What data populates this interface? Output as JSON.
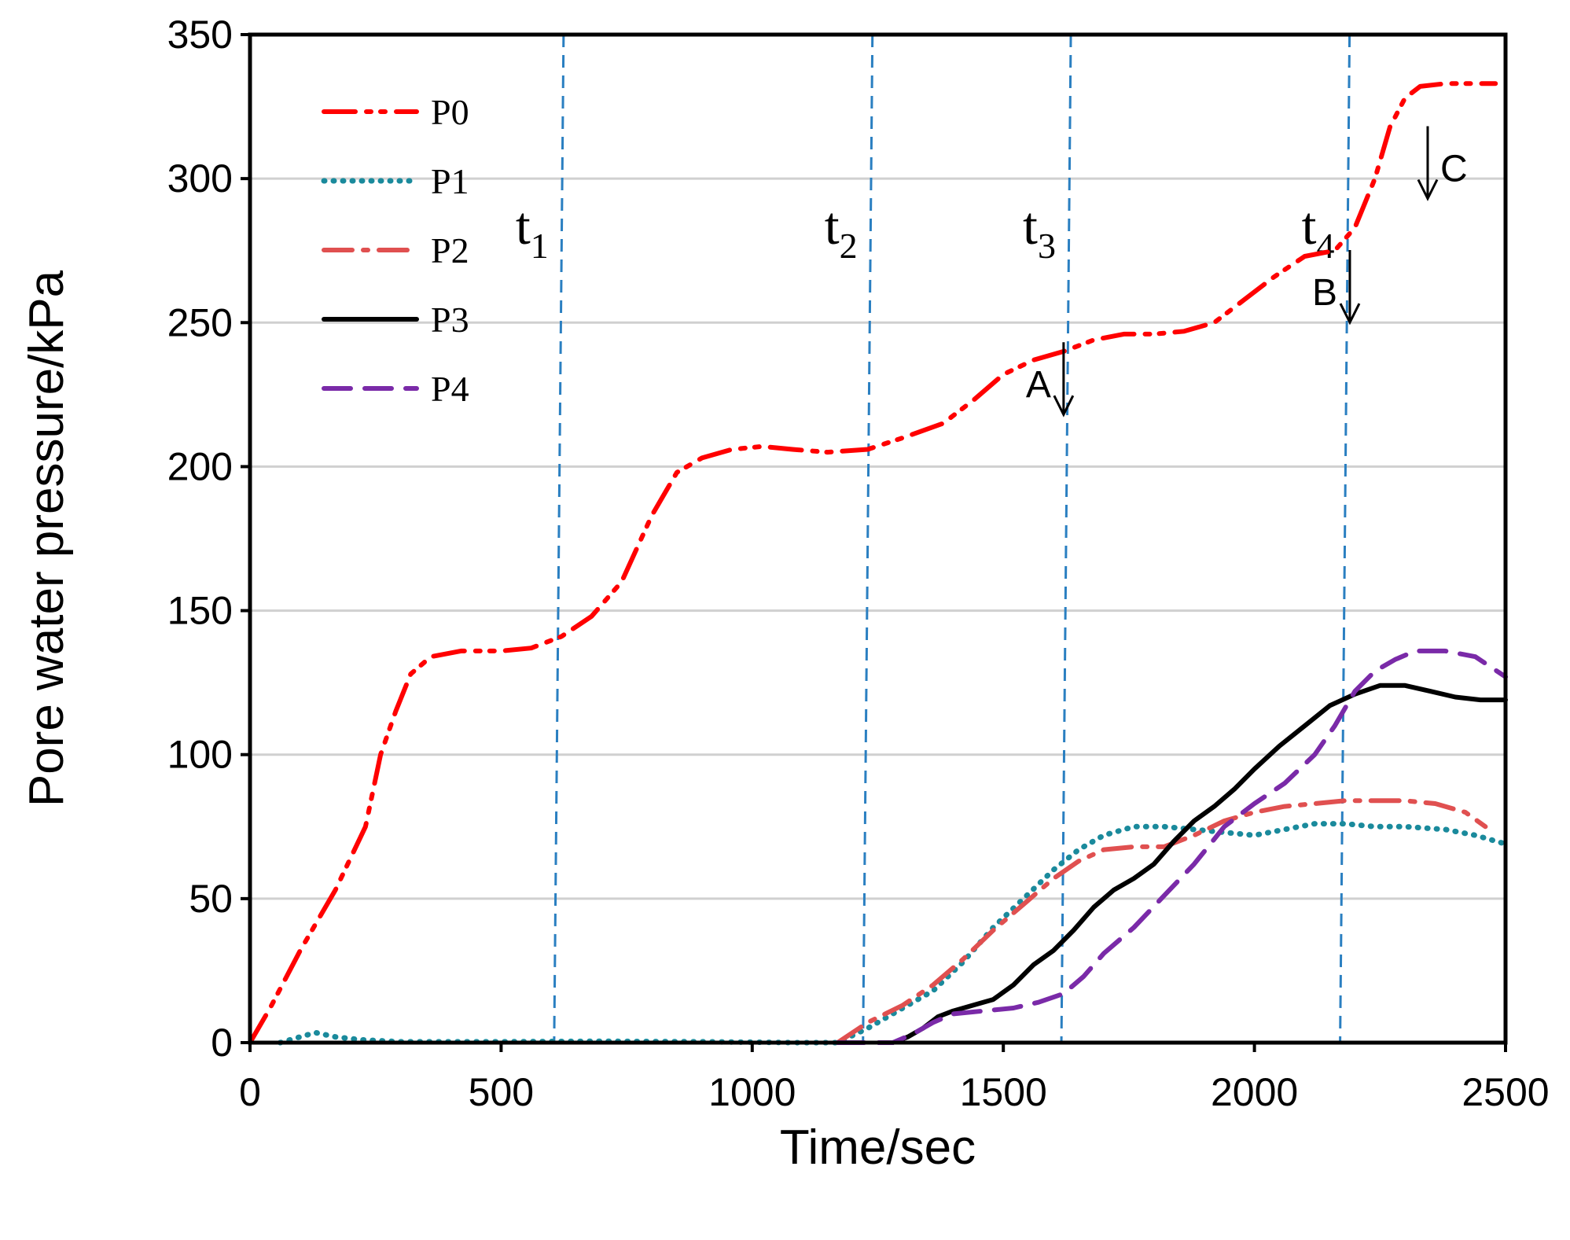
{
  "chart_data": {
    "type": "line",
    "title": "",
    "xlabel": "Time/sec",
    "ylabel": "Pore water pressure/kPa",
    "xlim": [
      0,
      2500
    ],
    "ylim": [
      0,
      350
    ],
    "xticks": [
      0,
      500,
      1000,
      1500,
      2000,
      2500
    ],
    "yticks": [
      0,
      50,
      100,
      150,
      200,
      250,
      300,
      350
    ],
    "xtick_labels": [
      "0",
      "500",
      "1000",
      "1500",
      "2000",
      "2500"
    ],
    "ytick_labels": [
      "0",
      "50",
      "100",
      "150",
      "200",
      "250",
      "300",
      "350"
    ],
    "grid": "horizontal",
    "legend_position": "top-left",
    "series": [
      {
        "name": "P0",
        "color": "#ff0000",
        "dash": "dash-dot-dot",
        "x": [
          0,
          40,
          100,
          170,
          230,
          260,
          290,
          320,
          360,
          420,
          500,
          560,
          620,
          680,
          740,
          800,
          850,
          900,
          960,
          1020,
          1080,
          1150,
          1230,
          1300,
          1380,
          1440,
          1500,
          1560,
          1620,
          1680,
          1740,
          1800,
          1860,
          1920,
          1980,
          2040,
          2100,
          2160,
          2200,
          2240,
          2270,
          2300,
          2330,
          2380,
          2450,
          2480
        ],
        "y": [
          0,
          12,
          32,
          53,
          75,
          100,
          115,
          128,
          134,
          136,
          136,
          137,
          141,
          148,
          160,
          183,
          198,
          203,
          206,
          207,
          206,
          205,
          206,
          210,
          215,
          223,
          232,
          237,
          240,
          244,
          246,
          246,
          247,
          250,
          258,
          266,
          273,
          275,
          283,
          300,
          318,
          328,
          332,
          333,
          333,
          333
        ]
      },
      {
        "name": "P1",
        "color": "#1a8a9c",
        "dash": "dotted",
        "x": [
          60,
          100,
          130,
          170,
          220,
          300,
          500,
          700,
          900,
          1100,
          1170,
          1230,
          1300,
          1360,
          1420,
          1480,
          1540,
          1600,
          1650,
          1700,
          1760,
          1820,
          1880,
          1940,
          2000,
          2060,
          2120,
          2180,
          2240,
          2300,
          2380,
          2440,
          2500
        ],
        "y": [
          0,
          2,
          3.5,
          2,
          1,
          0.3,
          0.3,
          0.5,
          0.3,
          0,
          0,
          5,
          12,
          18,
          28,
          40,
          50,
          60,
          67,
          72,
          75,
          75,
          74,
          73,
          72,
          74,
          76,
          76,
          75,
          75,
          74,
          72,
          69
        ]
      },
      {
        "name": "P2",
        "color": "#e05050",
        "dash": "dash-dot",
        "x": [
          1170,
          1230,
          1300,
          1360,
          1420,
          1480,
          1540,
          1600,
          1650,
          1700,
          1760,
          1820,
          1880,
          1940,
          2000,
          2060,
          2120,
          2180,
          2240,
          2300,
          2360,
          2420,
          2460
        ],
        "y": [
          0,
          7,
          13,
          20,
          29,
          39,
          48,
          57,
          63,
          67,
          68,
          68,
          72,
          77,
          80,
          82,
          83,
          84,
          84,
          84,
          83,
          80,
          75
        ]
      },
      {
        "name": "P3",
        "color": "#000000",
        "dash": "solid",
        "x": [
          1280,
          1310,
          1340,
          1370,
          1400,
          1440,
          1480,
          1520,
          1560,
          1600,
          1640,
          1680,
          1720,
          1760,
          1800,
          1840,
          1880,
          1920,
          1960,
          2000,
          2050,
          2100,
          2150,
          2200,
          2250,
          2300,
          2350,
          2400,
          2450,
          2500
        ],
        "y": [
          0,
          2,
          5,
          9,
          11,
          13,
          15,
          20,
          27,
          32,
          39,
          47,
          53,
          57,
          62,
          70,
          77,
          82,
          88,
          95,
          103,
          110,
          117,
          121,
          124,
          124,
          122,
          120,
          119,
          119
        ]
      },
      {
        "name": "P4",
        "color": "#7a2aa8",
        "dash": "dashed",
        "x": [
          1170,
          1280,
          1320,
          1360,
          1400,
          1460,
          1520,
          1570,
          1620,
          1660,
          1700,
          1760,
          1820,
          1880,
          1940,
          2000,
          2060,
          2120,
          2160,
          2200,
          2240,
          2280,
          2320,
          2380,
          2440,
          2500
        ],
        "y": [
          0,
          0,
          3,
          7,
          10,
          11,
          12,
          14,
          17,
          23,
          31,
          40,
          51,
          62,
          75,
          83,
          90,
          100,
          110,
          122,
          129,
          133,
          136,
          136,
          134,
          127
        ]
      }
    ],
    "vertical_markers": [
      {
        "name": "t1",
        "base": "t",
        "sub": "1",
        "x": 615
      },
      {
        "name": "t2",
        "base": "t",
        "sub": "2",
        "x": 1230
      },
      {
        "name": "t3",
        "base": "t",
        "sub": "3",
        "x": 1625
      },
      {
        "name": "t4",
        "base": "t",
        "sub": "4",
        "x": 2180
      }
    ],
    "marker_line_color": "#2a7fc1",
    "annotations": [
      {
        "label": "A",
        "x": 1620,
        "y": 235,
        "side": "left"
      },
      {
        "label": "B",
        "x": 2190,
        "y": 267,
        "side": "left"
      },
      {
        "label": "C",
        "x": 2345,
        "y": 310,
        "side": "right"
      }
    ]
  }
}
